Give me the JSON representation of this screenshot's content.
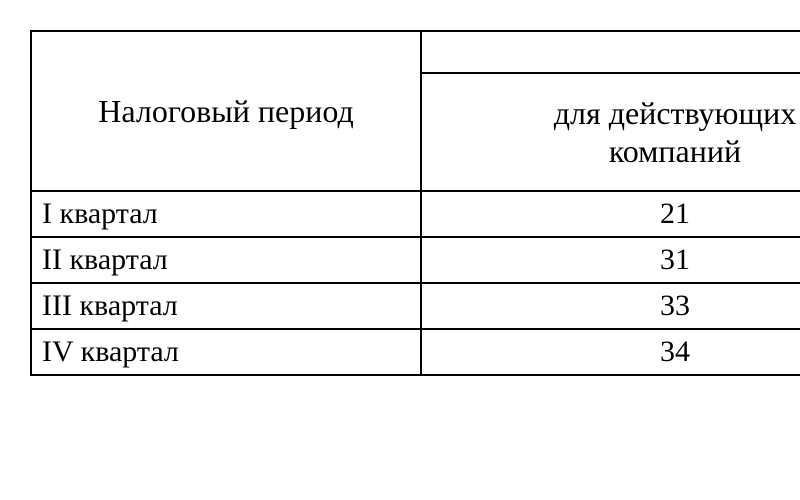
{
  "table": {
    "header": {
      "period_label": "Налоговый период",
      "companies_label_line1": "для действующих",
      "companies_label_line2": "компаний"
    },
    "rows": [
      {
        "period": "I квартал",
        "value": "21"
      },
      {
        "period": "II квартал",
        "value": "31"
      },
      {
        "period": "III квартал",
        "value": "33"
      },
      {
        "period": "IV квартал",
        "value": "34"
      }
    ],
    "style": {
      "font_family": "Times New Roman",
      "header_fontsize": 32,
      "cell_fontsize": 30,
      "border_color": "#000000",
      "border_width": 2,
      "background_color": "#ffffff",
      "text_color": "#000000",
      "col1_width": 390,
      "col2_width": 510,
      "header_row1_height": 42,
      "header_row2_height": 118,
      "data_row_height": 46
    }
  }
}
